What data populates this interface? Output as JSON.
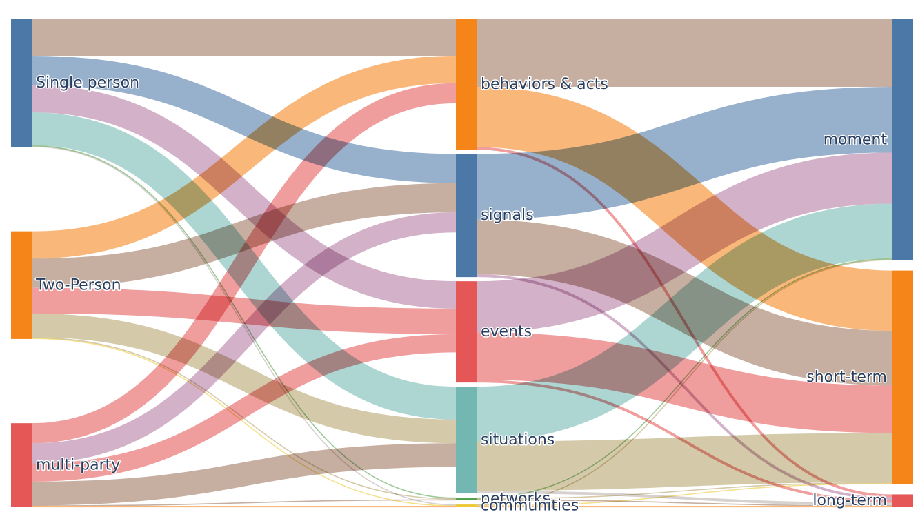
{
  "chart_data": {
    "type": "sankey",
    "nodes": [
      {
        "id": "single",
        "label": "Single person",
        "column": 0,
        "color": "#4c78a8"
      },
      {
        "id": "two",
        "label": "Two-Person",
        "column": 0,
        "color": "#f58518"
      },
      {
        "id": "multi",
        "label": "multi-party",
        "column": 0,
        "color": "#e45756"
      },
      {
        "id": "behaviors",
        "label": "behaviors & acts",
        "column": 1,
        "color": "#f58518"
      },
      {
        "id": "signals",
        "label": "signals",
        "column": 1,
        "color": "#4c78a8"
      },
      {
        "id": "events",
        "label": "events",
        "column": 1,
        "color": "#e45756"
      },
      {
        "id": "situations",
        "label": "situations",
        "column": 1,
        "color": "#72b7b2"
      },
      {
        "id": "networks",
        "label": "networks",
        "column": 1,
        "color": "#54a24b"
      },
      {
        "id": "communities",
        "label": "communities",
        "column": 1,
        "color": "#eeca3b"
      },
      {
        "id": "moment",
        "label": "moment",
        "column": 2,
        "color": "#4c78a8"
      },
      {
        "id": "shortterm",
        "label": "short-term",
        "column": 2,
        "color": "#f58518"
      },
      {
        "id": "longterm",
        "label": "long-term",
        "column": 2,
        "color": "#e45756"
      }
    ],
    "links": [
      {
        "source": "single",
        "target": "behaviors",
        "value": 40,
        "color": "#9d755d"
      },
      {
        "source": "single",
        "target": "signals",
        "value": 32,
        "color": "#4c78a8"
      },
      {
        "source": "single",
        "target": "events",
        "value": 30,
        "color": "#b279a2"
      },
      {
        "source": "single",
        "target": "situations",
        "value": 36,
        "color": "#72b7b2"
      },
      {
        "source": "single",
        "target": "networks",
        "value": 1,
        "color": "#54a24b"
      },
      {
        "source": "single",
        "target": "communities",
        "value": 1,
        "color": "#bab0ac"
      },
      {
        "source": "two",
        "target": "behaviors",
        "value": 30,
        "color": "#f58518"
      },
      {
        "source": "two",
        "target": "signals",
        "value": 32,
        "color": "#9d755d"
      },
      {
        "source": "two",
        "target": "events",
        "value": 28,
        "color": "#e45756"
      },
      {
        "source": "two",
        "target": "situations",
        "value": 26,
        "color": "#b5a46b"
      },
      {
        "source": "two",
        "target": "networks",
        "value": 1,
        "color": "#b5a46b"
      },
      {
        "source": "two",
        "target": "communities",
        "value": 1,
        "color": "#eeca3b"
      },
      {
        "source": "multi",
        "target": "behaviors",
        "value": 22,
        "color": "#e45756"
      },
      {
        "source": "multi",
        "target": "signals",
        "value": 22,
        "color": "#b279a2"
      },
      {
        "source": "multi",
        "target": "events",
        "value": 20,
        "color": "#e45756"
      },
      {
        "source": "multi",
        "target": "situations",
        "value": 26,
        "color": "#9d755d"
      },
      {
        "source": "multi",
        "target": "networks",
        "value": 1,
        "color": "#9d755d"
      },
      {
        "source": "multi",
        "target": "communities",
        "value": 1,
        "color": "#f58518"
      },
      {
        "source": "behaviors",
        "target": "moment",
        "value": 74,
        "color": "#9d755d"
      },
      {
        "source": "behaviors",
        "target": "shortterm",
        "value": 66,
        "color": "#f58518"
      },
      {
        "source": "behaviors",
        "target": "longterm",
        "value": 3,
        "color": "#e45756"
      },
      {
        "source": "signals",
        "target": "moment",
        "value": 72,
        "color": "#4c78a8"
      },
      {
        "source": "signals",
        "target": "shortterm",
        "value": 60,
        "color": "#9d755d"
      },
      {
        "source": "signals",
        "target": "longterm",
        "value": 3,
        "color": "#b279a2"
      },
      {
        "source": "events",
        "target": "moment",
        "value": 56,
        "color": "#b279a2"
      },
      {
        "source": "events",
        "target": "shortterm",
        "value": 52,
        "color": "#e45756"
      },
      {
        "source": "events",
        "target": "longterm",
        "value": 3,
        "color": "#e45756"
      },
      {
        "source": "situations",
        "target": "moment",
        "value": 60,
        "color": "#72b7b2"
      },
      {
        "source": "situations",
        "target": "shortterm",
        "value": 54,
        "color": "#b5a46b"
      },
      {
        "source": "situations",
        "target": "longterm",
        "value": 3,
        "color": "#bab0ac"
      },
      {
        "source": "networks",
        "target": "moment",
        "value": 1,
        "color": "#54a24b"
      },
      {
        "source": "networks",
        "target": "shortterm",
        "value": 1,
        "color": "#b5a46b"
      },
      {
        "source": "networks",
        "target": "longterm",
        "value": 1,
        "color": "#9d755d"
      },
      {
        "source": "communities",
        "target": "moment",
        "value": 1,
        "color": "#b5a46b"
      },
      {
        "source": "communities",
        "target": "shortterm",
        "value": 1,
        "color": "#eeca3b"
      },
      {
        "source": "communities",
        "target": "longterm",
        "value": 1,
        "color": "#f58518"
      }
    ]
  }
}
